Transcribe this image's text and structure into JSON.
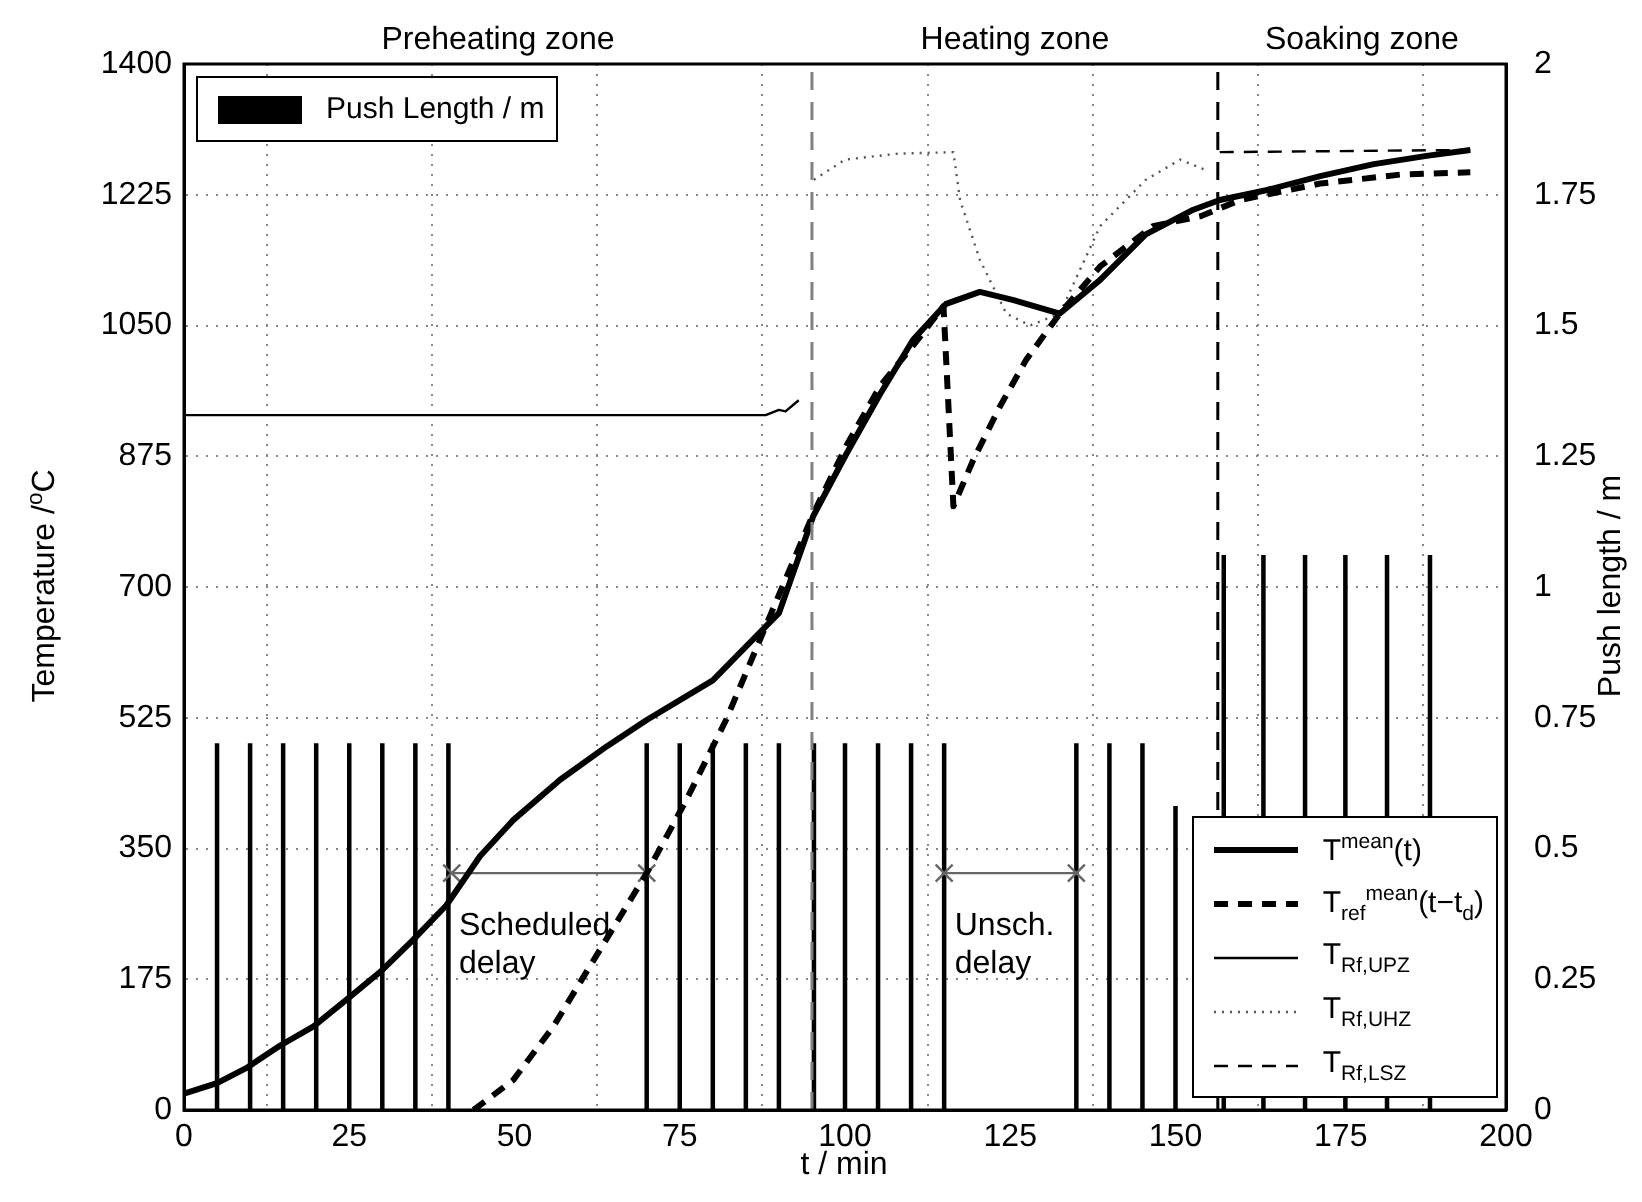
{
  "chart_data": {
    "type": "line",
    "xlabel": "t / min",
    "ylabel": "Temperature /$^{o}$C",
    "y2label": "Push length / m",
    "xlim": [
      0,
      200
    ],
    "xticks": [
      0,
      25,
      50,
      75,
      100,
      125,
      150,
      175,
      200
    ],
    "ylim": [
      0,
      1400
    ],
    "yticks": [
      0,
      175,
      350,
      525,
      700,
      875,
      1050,
      1225,
      1400
    ],
    "y2lim": [
      0,
      2
    ],
    "y2ticks": [
      0,
      0.25,
      0.5,
      0.75,
      1,
      1.25,
      1.5,
      1.75,
      2
    ],
    "grid": true,
    "legend": "bottom right",
    "marker": "none",
    "series": [
      {
        "name": "Push Length / m",
        "type": "bar",
        "axis": "y2",
        "color": "#000000",
        "x": [
          5,
          10,
          15,
          20,
          25,
          30,
          35,
          40,
          70,
          75,
          80,
          85,
          90,
          95.3,
          100,
          105,
          110,
          115,
          135,
          140,
          145,
          150,
          157.3,
          163.3,
          169.6,
          175.7,
          182,
          188.5
        ],
        "values": [
          0.7,
          0.7,
          0.7,
          0.7,
          0.7,
          0.7,
          0.7,
          0.7,
          0.7,
          0.7,
          0.7,
          0.7,
          0.7,
          0.7,
          0.7,
          0.7,
          0.7,
          0.7,
          0.7,
          0.7,
          0.7,
          0.58,
          1.06,
          1.06,
          1.06,
          1.06,
          1.06,
          1.06
        ]
      },
      {
        "name": "T$^{mean}$(t)",
        "color": "#000000",
        "line_style": "solid",
        "x": [
          0,
          5,
          9.4,
          14.5,
          19.6,
          24.5,
          29.7,
          34.7,
          39.7,
          44.8,
          49.8,
          56.9,
          64,
          70,
          80,
          90,
          95.2,
          100.2,
          105.3,
          110.3,
          115.3,
          120.4,
          125.5,
          132.5,
          138.6,
          145.5,
          152.7,
          156.7,
          163.7,
          171.9,
          180,
          188,
          194.6
        ],
        "values": [
          22,
          36,
          56,
          86,
          112,
          147,
          185,
          228,
          274,
          340,
          388,
          442,
          487,
          522,
          575,
          665,
          795,
          878,
          958,
          1031,
          1079,
          1095,
          1084,
          1066,
          1111,
          1172,
          1205,
          1218,
          1231,
          1250,
          1266,
          1277,
          1285
        ]
      },
      {
        "name": "T$_{ref}$$^{mean}$(t−t$_{d}$)",
        "color": "#000000",
        "line_style": "dashed",
        "x": [
          43.8,
          49.8,
          55.9,
          62,
          70,
          76,
          82,
          95.2,
          100.2,
          105.3,
          110.3,
          114.9,
          116.4,
          119.4,
          123.4,
          127.4,
          132.5,
          138.6,
          146.6,
          153.7,
          159.8,
          171.9,
          184,
          194.6
        ],
        "values": [
          0,
          40,
          112,
          201,
          317,
          415,
          522,
          798,
          889,
          969,
          1023,
          1076,
          808,
          870,
          941,
          1004,
          1066,
          1129,
          1183,
          1196,
          1218,
          1240,
          1252,
          1255
        ]
      },
      {
        "name": "T$_{Rf,UPZ}$",
        "color": "#000000",
        "line_style": "solid",
        "x": [
          0,
          88,
          90,
          91,
          93
        ],
        "values": [
          930,
          930,
          937,
          935,
          950
        ]
      },
      {
        "name": "T$_{Rf,UHZ}$",
        "color": "#555555",
        "line_style": "dotted",
        "x": [
          95.3,
          100,
          108,
          116.4,
          117.4,
          120.4,
          124.4,
          128,
          132.5,
          138.6,
          145.5,
          150.7,
          154.6
        ],
        "values": [
          1245,
          1272,
          1280,
          1282,
          1218,
          1138,
          1066,
          1050,
          1066,
          1183,
          1245,
          1272,
          1258
        ]
      },
      {
        "name": "T$_{Rf,LSZ}$",
        "color": "#000000",
        "line_style": "dashed",
        "x": [
          156.7,
          194.6
        ],
        "values": [
          1282,
          1285
        ]
      },
      {
        "color": "#666666",
        "marker": "cross",
        "line_style": "solid",
        "x": [
          40.5,
          70
        ],
        "values": [
          317,
          317
        ]
      },
      {
        "color": "#666666",
        "marker": "cross",
        "line_style": "solid",
        "x": [
          115,
          135
        ],
        "values": [
          317,
          317
        ]
      }
    ],
    "ref_lines": [
      {
        "axis": "x",
        "value": 95,
        "color": "#808080",
        "line_style": "dashed"
      },
      {
        "axis": "x",
        "value": 156.4,
        "color": "#000000",
        "line_style": "dashed"
      }
    ],
    "annotations": [
      "Preheating zone",
      "Heating zone",
      "Soaking zone",
      {
        "text": "Scheduled\ndelay",
        "x": 41,
        "y": 268
      },
      {
        "text": "Unsch.\ndelay",
        "x": 116,
        "y": 268
      }
    ]
  }
}
